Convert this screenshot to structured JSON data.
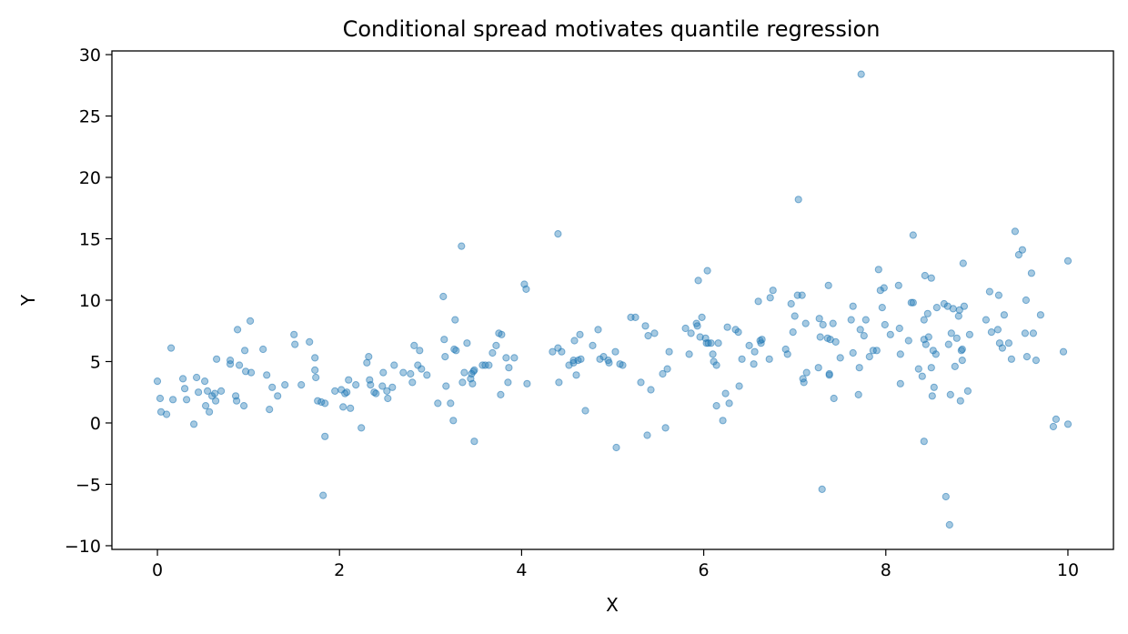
{
  "chart_data": {
    "type": "scatter",
    "title": "Conditional spread motivates quantile regression",
    "xlabel": "X",
    "ylabel": "Y",
    "xlim": [
      -0.5,
      10.5
    ],
    "ylim": [
      -10.3,
      30.3
    ],
    "xticks": [
      0,
      2,
      4,
      6,
      8,
      10
    ],
    "xtick_labels": [
      "0",
      "2",
      "4",
      "6",
      "8",
      "10"
    ],
    "yticks": [
      -10,
      -5,
      0,
      5,
      10,
      15,
      20,
      25,
      30
    ],
    "ytick_labels": [
      "−10",
      "−5",
      "0",
      "5",
      "10",
      "15",
      "20",
      "25",
      "30"
    ],
    "grid": false,
    "legend": "none",
    "marker_color": "#1f77b4",
    "marker_alpha": 0.4,
    "series": [
      {
        "points": [
          [
            0.0,
            3.4
          ],
          [
            0.03,
            2.0
          ],
          [
            0.04,
            0.9
          ],
          [
            0.1,
            0.7
          ],
          [
            0.15,
            6.1
          ],
          [
            0.17,
            1.9
          ],
          [
            0.28,
            3.6
          ],
          [
            0.3,
            2.8
          ],
          [
            0.32,
            1.9
          ],
          [
            0.4,
            -0.1
          ],
          [
            0.43,
            3.7
          ],
          [
            0.45,
            2.5
          ],
          [
            0.52,
            3.4
          ],
          [
            0.53,
            1.4
          ],
          [
            0.55,
            2.6
          ],
          [
            0.57,
            0.9
          ],
          [
            0.6,
            2.2
          ],
          [
            0.63,
            2.4
          ],
          [
            0.64,
            1.8
          ],
          [
            0.65,
            5.2
          ],
          [
            0.7,
            2.6
          ],
          [
            0.8,
            4.8
          ],
          [
            0.8,
            5.1
          ],
          [
            0.86,
            2.2
          ],
          [
            0.87,
            1.8
          ],
          [
            0.88,
            7.6
          ],
          [
            0.9,
            4.7
          ],
          [
            0.95,
            1.4
          ],
          [
            0.96,
            5.9
          ],
          [
            0.97,
            4.2
          ],
          [
            1.02,
            8.3
          ],
          [
            1.03,
            4.1
          ],
          [
            1.16,
            6.0
          ],
          [
            1.2,
            3.9
          ],
          [
            1.23,
            1.1
          ],
          [
            1.26,
            2.9
          ],
          [
            1.32,
            2.2
          ],
          [
            1.4,
            3.1
          ],
          [
            1.5,
            7.2
          ],
          [
            1.51,
            6.4
          ],
          [
            1.58,
            3.1
          ],
          [
            1.67,
            6.6
          ],
          [
            1.73,
            5.3
          ],
          [
            1.73,
            4.3
          ],
          [
            1.74,
            3.7
          ],
          [
            1.76,
            1.8
          ],
          [
            1.8,
            1.7
          ],
          [
            1.82,
            -5.9
          ],
          [
            1.84,
            1.6
          ],
          [
            1.84,
            -1.1
          ],
          [
            1.95,
            2.6
          ],
          [
            2.02,
            2.7
          ],
          [
            2.04,
            1.3
          ],
          [
            2.06,
            2.4
          ],
          [
            2.08,
            2.5
          ],
          [
            2.1,
            3.5
          ],
          [
            2.12,
            1.2
          ],
          [
            2.18,
            3.1
          ],
          [
            2.24,
            -0.4
          ],
          [
            2.3,
            4.9
          ],
          [
            2.32,
            5.4
          ],
          [
            2.33,
            3.5
          ],
          [
            2.34,
            3.1
          ],
          [
            2.38,
            2.5
          ],
          [
            2.4,
            2.4
          ],
          [
            2.47,
            3.0
          ],
          [
            2.48,
            4.1
          ],
          [
            2.52,
            2.6
          ],
          [
            2.53,
            2.0
          ],
          [
            2.58,
            2.9
          ],
          [
            2.6,
            4.7
          ],
          [
            2.7,
            4.1
          ],
          [
            2.78,
            4.0
          ],
          [
            2.8,
            3.3
          ],
          [
            2.82,
            6.3
          ],
          [
            2.86,
            4.7
          ],
          [
            2.88,
            5.9
          ],
          [
            2.9,
            4.4
          ],
          [
            2.96,
            3.9
          ],
          [
            3.08,
            1.6
          ],
          [
            3.14,
            10.3
          ],
          [
            3.15,
            6.8
          ],
          [
            3.16,
            5.4
          ],
          [
            3.17,
            3.0
          ],
          [
            3.22,
            1.6
          ],
          [
            3.25,
            0.2
          ],
          [
            3.26,
            6.0
          ],
          [
            3.27,
            8.4
          ],
          [
            3.28,
            5.9
          ],
          [
            3.34,
            14.4
          ],
          [
            3.35,
            3.3
          ],
          [
            3.37,
            4.1
          ],
          [
            3.4,
            6.5
          ],
          [
            3.44,
            3.6
          ],
          [
            3.45,
            4.0
          ],
          [
            3.46,
            3.2
          ],
          [
            3.47,
            4.2
          ],
          [
            3.48,
            4.3
          ],
          [
            3.48,
            -1.5
          ],
          [
            3.57,
            4.7
          ],
          [
            3.6,
            4.7
          ],
          [
            3.64,
            4.7
          ],
          [
            3.68,
            5.7
          ],
          [
            3.72,
            6.3
          ],
          [
            3.75,
            7.3
          ],
          [
            3.77,
            2.3
          ],
          [
            3.78,
            7.2
          ],
          [
            3.83,
            5.3
          ],
          [
            3.85,
            3.3
          ],
          [
            3.86,
            4.5
          ],
          [
            3.92,
            5.3
          ],
          [
            4.03,
            11.3
          ],
          [
            4.05,
            10.9
          ],
          [
            4.06,
            3.2
          ],
          [
            4.34,
            5.8
          ],
          [
            4.4,
            15.4
          ],
          [
            4.4,
            6.1
          ],
          [
            4.41,
            3.3
          ],
          [
            4.44,
            5.8
          ],
          [
            4.52,
            4.7
          ],
          [
            4.57,
            5.1
          ],
          [
            4.57,
            4.9
          ],
          [
            4.58,
            6.7
          ],
          [
            4.6,
            3.9
          ],
          [
            4.62,
            5.1
          ],
          [
            4.64,
            7.2
          ],
          [
            4.65,
            5.2
          ],
          [
            4.7,
            1.0
          ],
          [
            4.78,
            6.3
          ],
          [
            4.84,
            7.6
          ],
          [
            4.86,
            5.2
          ],
          [
            4.9,
            5.4
          ],
          [
            4.95,
            5.1
          ],
          [
            4.96,
            4.9
          ],
          [
            5.03,
            5.8
          ],
          [
            5.04,
            -2.0
          ],
          [
            5.08,
            4.8
          ],
          [
            5.11,
            4.7
          ],
          [
            5.2,
            8.6
          ],
          [
            5.25,
            8.6
          ],
          [
            5.31,
            3.3
          ],
          [
            5.36,
            7.9
          ],
          [
            5.38,
            -1.0
          ],
          [
            5.39,
            7.1
          ],
          [
            5.42,
            2.7
          ],
          [
            5.46,
            7.3
          ],
          [
            5.55,
            4.0
          ],
          [
            5.58,
            -0.4
          ],
          [
            5.6,
            4.4
          ],
          [
            5.62,
            5.8
          ],
          [
            5.8,
            7.7
          ],
          [
            5.84,
            5.6
          ],
          [
            5.86,
            7.3
          ],
          [
            5.92,
            8.1
          ],
          [
            5.93,
            7.9
          ],
          [
            5.94,
            11.6
          ],
          [
            5.96,
            7.0
          ],
          [
            5.98,
            8.6
          ],
          [
            6.02,
            6.9
          ],
          [
            6.03,
            6.5
          ],
          [
            6.04,
            12.4
          ],
          [
            6.05,
            6.5
          ],
          [
            6.08,
            6.5
          ],
          [
            6.1,
            5.6
          ],
          [
            6.11,
            5.0
          ],
          [
            6.14,
            4.7
          ],
          [
            6.14,
            1.4
          ],
          [
            6.16,
            6.5
          ],
          [
            6.21,
            0.2
          ],
          [
            6.24,
            2.4
          ],
          [
            6.26,
            7.8
          ],
          [
            6.28,
            1.6
          ],
          [
            6.35,
            7.6
          ],
          [
            6.38,
            7.4
          ],
          [
            6.39,
            3.0
          ],
          [
            6.42,
            5.2
          ],
          [
            6.5,
            6.3
          ],
          [
            6.55,
            4.8
          ],
          [
            6.56,
            5.8
          ],
          [
            6.6,
            9.9
          ],
          [
            6.62,
            6.7
          ],
          [
            6.63,
            6.5
          ],
          [
            6.64,
            6.8
          ],
          [
            6.72,
            5.2
          ],
          [
            6.73,
            10.2
          ],
          [
            6.76,
            10.8
          ],
          [
            6.9,
            6.0
          ],
          [
            6.92,
            5.6
          ],
          [
            6.96,
            9.7
          ],
          [
            6.98,
            7.4
          ],
          [
            7.0,
            8.7
          ],
          [
            7.03,
            10.4
          ],
          [
            7.04,
            18.2
          ],
          [
            7.08,
            10.4
          ],
          [
            7.09,
            3.6
          ],
          [
            7.1,
            3.3
          ],
          [
            7.12,
            8.1
          ],
          [
            7.13,
            4.1
          ],
          [
            7.26,
            4.5
          ],
          [
            7.27,
            8.5
          ],
          [
            7.28,
            7.0
          ],
          [
            7.3,
            -5.4
          ],
          [
            7.31,
            8.0
          ],
          [
            7.36,
            6.9
          ],
          [
            7.37,
            11.2
          ],
          [
            7.38,
            3.9
          ],
          [
            7.38,
            4.0
          ],
          [
            7.39,
            6.8
          ],
          [
            7.42,
            8.1
          ],
          [
            7.43,
            2.0
          ],
          [
            7.45,
            6.6
          ],
          [
            7.5,
            5.3
          ],
          [
            7.62,
            8.4
          ],
          [
            7.64,
            9.5
          ],
          [
            7.64,
            5.7
          ],
          [
            7.7,
            2.3
          ],
          [
            7.71,
            4.5
          ],
          [
            7.72,
            7.6
          ],
          [
            7.73,
            28.4
          ],
          [
            7.76,
            7.1
          ],
          [
            7.78,
            8.4
          ],
          [
            7.82,
            5.4
          ],
          [
            7.86,
            5.9
          ],
          [
            7.9,
            5.9
          ],
          [
            7.92,
            12.5
          ],
          [
            7.94,
            10.8
          ],
          [
            7.96,
            9.4
          ],
          [
            7.98,
            11.0
          ],
          [
            7.99,
            8.0
          ],
          [
            8.05,
            7.2
          ],
          [
            8.14,
            11.2
          ],
          [
            8.15,
            7.7
          ],
          [
            8.16,
            3.2
          ],
          [
            8.16,
            5.6
          ],
          [
            8.25,
            6.7
          ],
          [
            8.28,
            9.8
          ],
          [
            8.3,
            15.3
          ],
          [
            8.3,
            9.8
          ],
          [
            8.36,
            4.4
          ],
          [
            8.4,
            3.8
          ],
          [
            8.42,
            8.4
          ],
          [
            8.42,
            6.8
          ],
          [
            8.42,
            -1.5
          ],
          [
            8.43,
            12.0
          ],
          [
            8.44,
            6.4
          ],
          [
            8.46,
            8.9
          ],
          [
            8.47,
            7.0
          ],
          [
            8.5,
            11.8
          ],
          [
            8.5,
            4.5
          ],
          [
            8.51,
            2.2
          ],
          [
            8.52,
            5.9
          ],
          [
            8.53,
            2.9
          ],
          [
            8.55,
            5.6
          ],
          [
            8.56,
            9.4
          ],
          [
            8.64,
            9.7
          ],
          [
            8.66,
            -6.0
          ],
          [
            8.68,
            9.5
          ],
          [
            8.69,
            6.4
          ],
          [
            8.7,
            -8.3
          ],
          [
            8.71,
            2.3
          ],
          [
            8.72,
            7.3
          ],
          [
            8.74,
            9.3
          ],
          [
            8.76,
            4.6
          ],
          [
            8.78,
            6.9
          ],
          [
            8.8,
            8.7
          ],
          [
            8.81,
            9.2
          ],
          [
            8.82,
            1.8
          ],
          [
            8.83,
            5.9
          ],
          [
            8.84,
            6.0
          ],
          [
            8.84,
            5.1
          ],
          [
            8.85,
            13.0
          ],
          [
            8.86,
            9.5
          ],
          [
            8.9,
            2.6
          ],
          [
            8.92,
            7.2
          ],
          [
            9.1,
            8.4
          ],
          [
            9.14,
            10.7
          ],
          [
            9.16,
            7.4
          ],
          [
            9.23,
            7.6
          ],
          [
            9.24,
            10.4
          ],
          [
            9.25,
            6.5
          ],
          [
            9.28,
            6.1
          ],
          [
            9.3,
            8.8
          ],
          [
            9.35,
            6.5
          ],
          [
            9.38,
            5.2
          ],
          [
            9.42,
            15.6
          ],
          [
            9.46,
            13.7
          ],
          [
            9.5,
            14.1
          ],
          [
            9.53,
            7.3
          ],
          [
            9.54,
            10.0
          ],
          [
            9.55,
            5.4
          ],
          [
            9.6,
            12.2
          ],
          [
            9.62,
            7.3
          ],
          [
            9.65,
            5.1
          ],
          [
            9.7,
            8.8
          ],
          [
            9.84,
            -0.3
          ],
          [
            9.87,
            0.3
          ],
          [
            9.95,
            5.8
          ],
          [
            10.0,
            13.2
          ],
          [
            10.0,
            -0.1
          ]
        ]
      }
    ]
  }
}
